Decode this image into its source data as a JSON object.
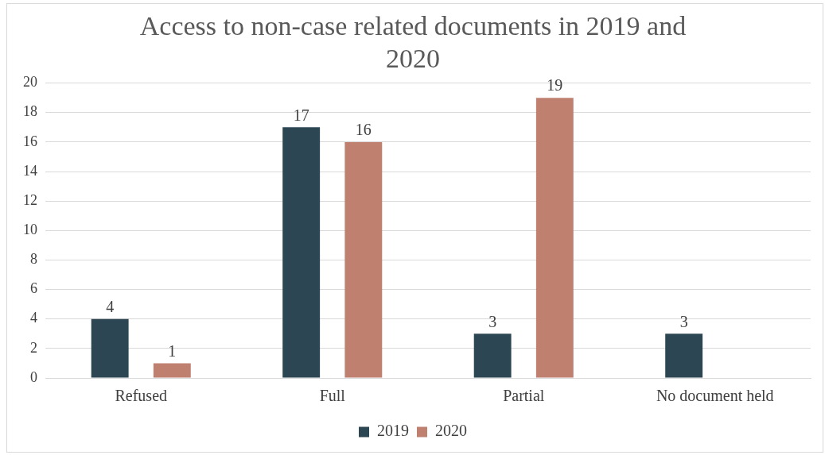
{
  "chart_data": {
    "type": "bar",
    "title": "Access to non-case related documents in 2019 and 2020",
    "categories": [
      "Refused",
      "Full",
      "Partial",
      "No document held"
    ],
    "series": [
      {
        "name": "2019",
        "color": "#2c4653",
        "values": [
          4,
          17,
          3,
          3
        ]
      },
      {
        "name": "2020",
        "color": "#c08070",
        "values": [
          1,
          16,
          19,
          null
        ]
      }
    ],
    "ylim": [
      0,
      20
    ],
    "yticks": [
      0,
      2,
      4,
      6,
      8,
      10,
      12,
      14,
      16,
      18,
      20
    ],
    "grid": "y",
    "legend": "bottom",
    "data_labels": true
  }
}
